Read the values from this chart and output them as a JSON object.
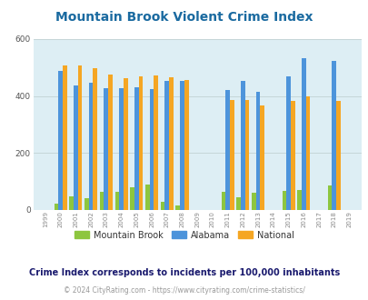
{
  "title": "Mountain Brook Violent Crime Index",
  "years": [
    1999,
    2000,
    2001,
    2002,
    2003,
    2004,
    2005,
    2006,
    2007,
    2008,
    2009,
    2010,
    2011,
    2012,
    2013,
    2014,
    2015,
    2016,
    2017,
    2018,
    2019
  ],
  "mountain_brook": [
    0,
    22,
    48,
    40,
    65,
    65,
    80,
    88,
    30,
    15,
    0,
    0,
    63,
    45,
    62,
    0,
    68,
    70,
    0,
    85,
    0
  ],
  "alabama": [
    0,
    488,
    438,
    445,
    428,
    428,
    432,
    425,
    452,
    452,
    0,
    0,
    420,
    452,
    415,
    0,
    470,
    533,
    0,
    522,
    0
  ],
  "national": [
    0,
    507,
    507,
    497,
    475,
    463,
    470,
    473,
    467,
    455,
    0,
    0,
    387,
    387,
    367,
    0,
    383,
    398,
    0,
    383,
    0
  ],
  "color_mb": "#8dc63f",
  "color_al": "#4d94db",
  "color_nat": "#f5a623",
  "bg_color": "#ddeef4",
  "ylim": [
    0,
    600
  ],
  "yticks": [
    0,
    200,
    400,
    600
  ],
  "title_color": "#1a6aa0",
  "title_fontsize": 10,
  "subtitle": "Crime Index corresponds to incidents per 100,000 inhabitants",
  "subtitle_color": "#1a1a6e",
  "subtitle_fontsize": 7,
  "footer": "© 2024 CityRating.com - https://www.cityrating.com/crime-statistics/",
  "footer_color": "#999999",
  "footer_fontsize": 5.5,
  "bar_width": 0.28,
  "legend_labels": [
    "Mountain Brook",
    "Alabama",
    "National"
  ],
  "grid_color": "#bbcccc"
}
